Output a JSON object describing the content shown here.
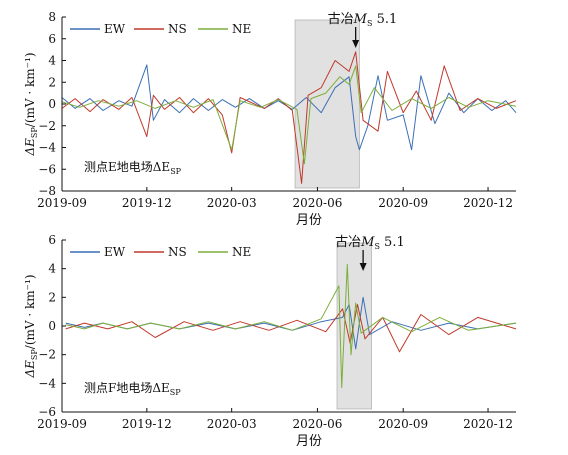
{
  "chart_data": [
    {
      "type": "line",
      "station_label": "测点E地电场ΔE",
      "station_label_sub": "SP",
      "xlabel": "月份",
      "ylabel_main": "ΔE",
      "ylabel_sub": "SP",
      "ylabel_units": "/(mV · km⁻¹)",
      "ylim": [
        -8,
        8
      ],
      "yticks": [
        -8,
        -6,
        -4,
        -2,
        0,
        2,
        4,
        6,
        8
      ],
      "xlim": [
        "2019-09-01",
        "2020-12-31"
      ],
      "xtick_labels": [
        "2019-09",
        "2019-12",
        "2020-03",
        "2020-06",
        "2020-09",
        "2020-12"
      ],
      "shaded_range": [
        "2020-05-08",
        "2020-07-16"
      ],
      "annotation": {
        "text": "古冶",
        "italic": "M",
        "sub": "S",
        "tail": " 5.1",
        "date": "2020-07-12"
      },
      "legend_position": "top",
      "series": [
        {
          "name": "EW",
          "color": "#3b6fb6",
          "values": [
            [
              "2019-09-01",
              0.6
            ],
            [
              "2019-09-15",
              -0.4
            ],
            [
              "2019-10-01",
              0.5
            ],
            [
              "2019-10-15",
              -0.6
            ],
            [
              "2019-11-01",
              0.3
            ],
            [
              "2019-11-15",
              -0.2
            ],
            [
              "2019-12-01",
              3.6
            ],
            [
              "2019-12-08",
              -1.5
            ],
            [
              "2019-12-20",
              0.4
            ],
            [
              "2020-01-05",
              -0.8
            ],
            [
              "2020-01-20",
              0.5
            ],
            [
              "2020-02-05",
              -0.6
            ],
            [
              "2020-02-20",
              0.4
            ],
            [
              "2020-03-05",
              -0.3
            ],
            [
              "2020-03-20",
              0.5
            ],
            [
              "2020-04-05",
              -0.4
            ],
            [
              "2020-04-20",
              0.3
            ],
            [
              "2020-05-05",
              -0.5
            ],
            [
              "2020-05-20",
              0.6
            ],
            [
              "2020-06-05",
              -0.8
            ],
            [
              "2020-06-20",
              1.5
            ],
            [
              "2020-07-05",
              2.5
            ],
            [
              "2020-07-12",
              -3.0
            ],
            [
              "2020-07-16",
              -4.2
            ],
            [
              "2020-07-25",
              -2.0
            ],
            [
              "2020-08-05",
              2.6
            ],
            [
              "2020-08-15",
              -1.5
            ],
            [
              "2020-09-01",
              -1.0
            ],
            [
              "2020-09-10",
              -4.2
            ],
            [
              "2020-09-20",
              2.6
            ],
            [
              "2020-10-05",
              -1.8
            ],
            [
              "2020-10-20",
              1.0
            ],
            [
              "2020-11-05",
              -0.8
            ],
            [
              "2020-11-20",
              0.5
            ],
            [
              "2020-12-05",
              -0.6
            ],
            [
              "2020-12-20",
              0.3
            ],
            [
              "2020-12-31",
              -0.8
            ]
          ]
        },
        {
          "name": "NS",
          "color": "#c0392b",
          "values": [
            [
              "2019-09-01",
              -0.4
            ],
            [
              "2019-09-15",
              0.5
            ],
            [
              "2019-10-01",
              -0.7
            ],
            [
              "2019-10-15",
              0.4
            ],
            [
              "2019-11-01",
              -0.5
            ],
            [
              "2019-11-15",
              0.6
            ],
            [
              "2019-12-01",
              -3.0
            ],
            [
              "2019-12-08",
              0.8
            ],
            [
              "2019-12-20",
              -0.5
            ],
            [
              "2020-01-05",
              0.6
            ],
            [
              "2020-01-20",
              -0.8
            ],
            [
              "2020-02-05",
              0.5
            ],
            [
              "2020-02-20",
              -1.0
            ],
            [
              "2020-03-01",
              -4.5
            ],
            [
              "2020-03-10",
              0.6
            ],
            [
              "2020-04-05",
              -0.4
            ],
            [
              "2020-04-20",
              0.5
            ],
            [
              "2020-05-05",
              -0.6
            ],
            [
              "2020-05-15",
              -7.3
            ],
            [
              "2020-05-22",
              0.8
            ],
            [
              "2020-06-05",
              1.5
            ],
            [
              "2020-06-20",
              4.0
            ],
            [
              "2020-07-05",
              3.0
            ],
            [
              "2020-07-12",
              4.8
            ],
            [
              "2020-07-20",
              -1.5
            ],
            [
              "2020-08-05",
              -2.5
            ],
            [
              "2020-08-15",
              3.0
            ],
            [
              "2020-09-01",
              -0.8
            ],
            [
              "2020-09-15",
              1.2
            ],
            [
              "2020-10-01",
              -1.5
            ],
            [
              "2020-10-15",
              3.5
            ],
            [
              "2020-11-01",
              -0.6
            ],
            [
              "2020-11-20",
              0.5
            ],
            [
              "2020-12-10",
              -0.4
            ],
            [
              "2020-12-31",
              0.3
            ]
          ]
        },
        {
          "name": "NE",
          "color": "#7cae3a",
          "values": [
            [
              "2019-09-01",
              0.2
            ],
            [
              "2019-09-20",
              -0.3
            ],
            [
              "2019-10-10",
              0.3
            ],
            [
              "2019-11-01",
              -0.2
            ],
            [
              "2019-11-20",
              0.3
            ],
            [
              "2019-12-10",
              -0.4
            ],
            [
              "2020-01-01",
              0.3
            ],
            [
              "2020-01-20",
              -0.3
            ],
            [
              "2020-02-10",
              0.4
            ],
            [
              "2020-03-01",
              -4.2
            ],
            [
              "2020-03-10",
              0.3
            ],
            [
              "2020-04-01",
              -0.3
            ],
            [
              "2020-04-20",
              0.4
            ],
            [
              "2020-05-10",
              -0.5
            ],
            [
              "2020-05-18",
              -5.5
            ],
            [
              "2020-05-25",
              0.5
            ],
            [
              "2020-06-10",
              1.0
            ],
            [
              "2020-06-25",
              2.5
            ],
            [
              "2020-07-05",
              1.8
            ],
            [
              "2020-07-12",
              3.5
            ],
            [
              "2020-07-18",
              -0.8
            ],
            [
              "2020-08-01",
              1.5
            ],
            [
              "2020-08-20",
              -0.6
            ],
            [
              "2020-09-10",
              0.5
            ],
            [
              "2020-10-01",
              -0.4
            ],
            [
              "2020-10-20",
              0.6
            ],
            [
              "2020-11-10",
              -0.3
            ],
            [
              "2020-12-01",
              0.3
            ],
            [
              "2020-12-31",
              -0.2
            ]
          ]
        }
      ]
    },
    {
      "type": "line",
      "station_label": "测点F地电场ΔE",
      "station_label_sub": "SP",
      "xlabel": "月份",
      "ylabel_main": "ΔE",
      "ylabel_sub": "SP",
      "ylabel_units": "/(mV · km⁻¹)",
      "ylim": [
        -6,
        6
      ],
      "yticks": [
        -6,
        -4,
        -2,
        0,
        2,
        4,
        6
      ],
      "xlim": [
        "2019-09-01",
        "2020-12-31"
      ],
      "xtick_labels": [
        "2019-09",
        "2019-12",
        "2020-03",
        "2020-06",
        "2020-09",
        "2020-12"
      ],
      "shaded_range": [
        "2020-06-22",
        "2020-07-29"
      ],
      "annotation": {
        "text": "古冶",
        "italic": "M",
        "sub": "S",
        "tail": " 5.1",
        "date": "2020-07-20"
      },
      "legend_position": "top",
      "series": [
        {
          "name": "EW",
          "color": "#3b6fb6",
          "values": [
            [
              "2019-09-05",
              0.2
            ],
            [
              "2019-09-25",
              -0.1
            ],
            [
              "2019-10-15",
              0.2
            ],
            [
              "2019-11-10",
              -0.2
            ],
            [
              "2019-12-05",
              0.2
            ],
            [
              "2020-01-05",
              -0.2
            ],
            [
              "2020-02-05",
              0.2
            ],
            [
              "2020-03-05",
              -0.2
            ],
            [
              "2020-04-05",
              0.2
            ],
            [
              "2020-05-05",
              -0.3
            ],
            [
              "2020-06-05",
              0.3
            ],
            [
              "2020-06-28",
              0.6
            ],
            [
              "2020-07-05",
              1.5
            ],
            [
              "2020-07-12",
              -1.6
            ],
            [
              "2020-07-20",
              2.0
            ],
            [
              "2020-07-27",
              -0.6
            ],
            [
              "2020-08-20",
              0.3
            ],
            [
              "2020-09-20",
              -0.3
            ],
            [
              "2020-10-20",
              0.2
            ],
            [
              "2020-11-20",
              -0.2
            ],
            [
              "2020-12-31",
              0.2
            ]
          ]
        },
        {
          "name": "NS",
          "color": "#c0392b",
          "values": [
            [
              "2019-09-05",
              -0.2
            ],
            [
              "2019-09-25",
              0.2
            ],
            [
              "2019-10-20",
              -0.2
            ],
            [
              "2019-11-15",
              0.3
            ],
            [
              "2019-12-10",
              -0.8
            ],
            [
              "2020-01-10",
              0.3
            ],
            [
              "2020-02-10",
              -0.3
            ],
            [
              "2020-03-10",
              0.3
            ],
            [
              "2020-04-10",
              -0.3
            ],
            [
              "2020-05-10",
              0.4
            ],
            [
              "2020-06-10",
              -0.4
            ],
            [
              "2020-06-28",
              1.2
            ],
            [
              "2020-07-06",
              -1.2
            ],
            [
              "2020-07-14",
              1.5
            ],
            [
              "2020-07-22",
              -0.9
            ],
            [
              "2020-08-10",
              0.6
            ],
            [
              "2020-08-28",
              -1.8
            ],
            [
              "2020-09-20",
              0.8
            ],
            [
              "2020-10-20",
              -0.6
            ],
            [
              "2020-11-20",
              0.6
            ],
            [
              "2020-12-31",
              -0.2
            ]
          ]
        },
        {
          "name": "NE",
          "color": "#7cae3a",
          "values": [
            [
              "2019-09-05",
              0.1
            ],
            [
              "2019-09-25",
              -0.2
            ],
            [
              "2019-10-15",
              0.2
            ],
            [
              "2019-11-10",
              -0.2
            ],
            [
              "2019-12-05",
              0.2
            ],
            [
              "2020-01-05",
              -0.2
            ],
            [
              "2020-02-05",
              0.3
            ],
            [
              "2020-03-05",
              -0.2
            ],
            [
              "2020-04-05",
              0.3
            ],
            [
              "2020-05-05",
              -0.3
            ],
            [
              "2020-06-05",
              0.5
            ],
            [
              "2020-06-24",
              2.8
            ],
            [
              "2020-06-27",
              -4.3
            ],
            [
              "2020-07-03",
              4.3
            ],
            [
              "2020-07-07",
              -2.0
            ],
            [
              "2020-07-12",
              1.6
            ],
            [
              "2020-07-18",
              -0.5
            ],
            [
              "2020-08-10",
              0.6
            ],
            [
              "2020-09-10",
              -0.4
            ],
            [
              "2020-10-10",
              0.6
            ],
            [
              "2020-11-10",
              -0.3
            ],
            [
              "2020-12-31",
              0.2
            ]
          ]
        }
      ]
    }
  ]
}
